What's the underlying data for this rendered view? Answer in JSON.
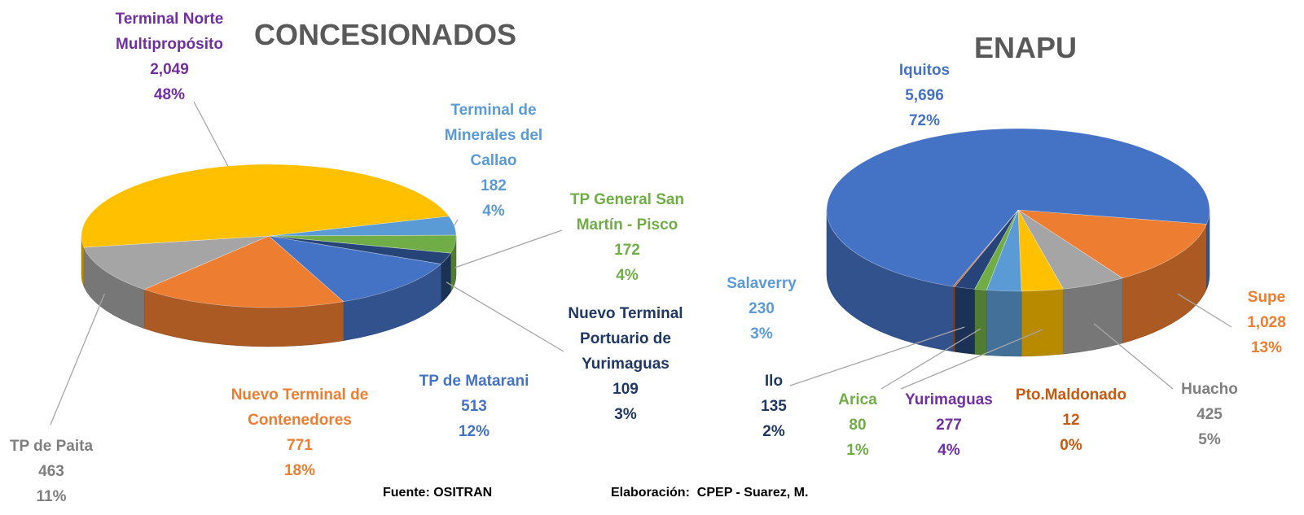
{
  "chart_data": [
    {
      "type": "pie",
      "title": "CONCESIONADOS",
      "categories": [
        "Terminal de Minerales del Callao",
        "TP General San Martín - Pisco",
        "Nuevo Terminal Portuario de Yurimaguas",
        "TP de Matarani",
        "Nuevo Terminal de Contenedores",
        "TP de Paita",
        "Terminal Norte Multipropósito"
      ],
      "values": [
        182,
        172,
        109,
        513,
        771,
        463,
        2049
      ],
      "value_labels": [
        "182",
        "172",
        "109",
        "513",
        "771",
        "463",
        "2,049"
      ],
      "percentages": [
        4,
        4,
        3,
        12,
        18,
        11,
        48
      ],
      "percentage_labels": [
        "4%",
        "4%",
        "3%",
        "12%",
        "18%",
        "11%",
        "48%"
      ],
      "colors": [
        "#5B9BD5",
        "#70AD47",
        "#264478",
        "#4472C4",
        "#ED7D31",
        "#A5A5A5",
        "#FFC000"
      ],
      "label_colors": [
        "#5B9BD5",
        "#70AD47",
        "#1F3864",
        "#4472C4",
        "#ED7D31",
        "#7F7F7F",
        "#7030A0"
      ]
    },
    {
      "type": "pie",
      "title": "ENAPU",
      "categories": [
        "Supe",
        "Huacho",
        "Yurimaguas",
        "Salaverry",
        "Arica",
        "Ilo",
        "Pto.Maldonado",
        "Iquitos"
      ],
      "values": [
        1028,
        425,
        277,
        230,
        80,
        135,
        12,
        5696
      ],
      "value_labels": [
        "1,028",
        "425",
        "277",
        "230",
        "80",
        "135",
        "12",
        "5,696"
      ],
      "percentages": [
        13,
        5,
        4,
        3,
        1,
        2,
        0,
        72
      ],
      "percentage_labels": [
        "13%",
        "5%",
        "4%",
        "3%",
        "1%",
        "2%",
        "0%",
        "72%"
      ],
      "colors": [
        "#ED7D31",
        "#A5A5A5",
        "#FFC000",
        "#5B9BD5",
        "#70AD47",
        "#264478",
        "#C55A11",
        "#4472C4"
      ],
      "label_colors": [
        "#ED7D31",
        "#7F7F7F",
        "#7030A0",
        "#5B9BD5",
        "#70AD47",
        "#1F3864",
        "#C55A11",
        "#4472C4"
      ]
    }
  ],
  "source": "Fuente: OSITRAN",
  "credit": "Elaboración:  CPEP - Suarez, M."
}
